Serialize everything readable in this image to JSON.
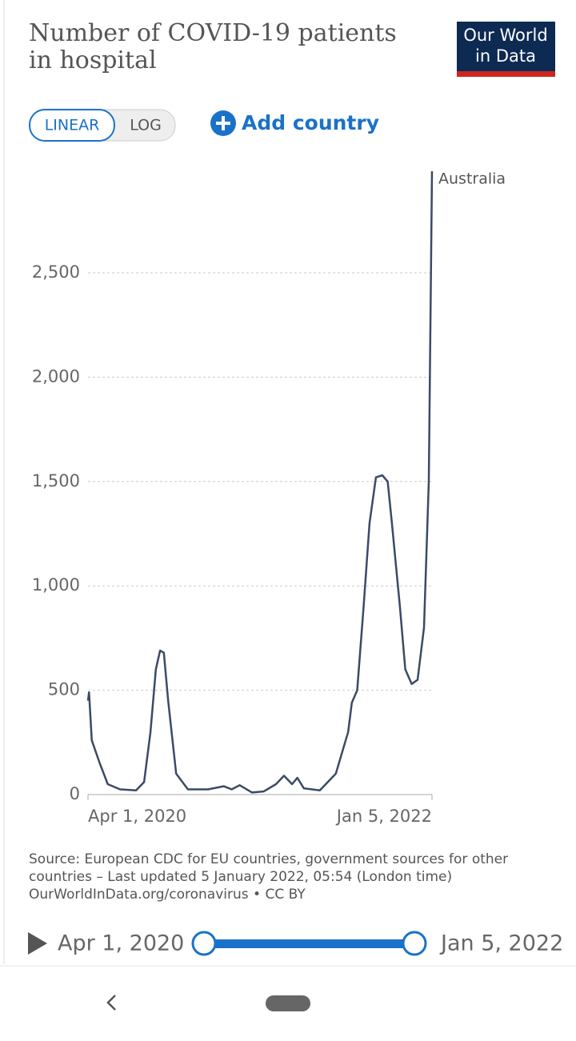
{
  "chart_data": {
    "type": "line",
    "title": [
      "Number of COVID-19 patients",
      "in hospital"
    ],
    "logo": [
      "Our World",
      "in Data"
    ],
    "buttons": [
      "LINEAR",
      "LOG"
    ],
    "add_country": "Add country",
    "x": [
      "2020-04-01",
      "2020-04-03",
      "2020-04-08",
      "2020-04-23",
      "2020-05-08",
      "2020-05-31",
      "2020-06-30",
      "2020-07-15",
      "2020-07-27",
      "2020-08-06",
      "2020-08-14",
      "2020-08-21",
      "2020-08-29",
      "2020-09-13",
      "2020-10-05",
      "2020-11-12",
      "2020-12-11",
      "2020-12-26",
      "2021-01-10",
      "2021-02-02",
      "2021-02-24",
      "2021-03-19",
      "2021-04-03",
      "2021-04-18",
      "2021-04-28",
      "2021-05-10",
      "2021-06-09",
      "2021-07-09",
      "2021-08-01",
      "2021-08-08",
      "2021-08-18",
      "2021-08-30",
      "2021-09-10",
      "2021-09-22",
      "2021-10-04",
      "2021-10-14",
      "2021-10-22",
      "2021-11-06",
      "2021-11-16",
      "2021-11-28",
      "2021-12-09",
      "2021-12-21",
      "2021-12-30",
      "2022-01-05"
    ],
    "series": [
      {
        "name": "Australia",
        "color": "#3b4a66",
        "values": [
          450,
          490,
          260,
          150,
          50,
          25,
          20,
          60,
          300,
          600,
          690,
          680,
          450,
          100,
          25,
          25,
          40,
          25,
          45,
          10,
          15,
          50,
          90,
          50,
          80,
          30,
          20,
          100,
          300,
          440,
          500,
          900,
          1300,
          1520,
          1530,
          1500,
          1300,
          900,
          600,
          530,
          550,
          800,
          1500,
          2987
        ]
      }
    ],
    "xlim": [
      "2020-04-01",
      "2022-01-05"
    ],
    "xticks": [
      {
        "value": "2020-04-01",
        "label": "Apr 1, 2020"
      },
      {
        "value": "2022-01-05",
        "label": "Jan 5, 2022"
      }
    ],
    "ylim": [
      0,
      2987
    ],
    "yticks": [
      0,
      500,
      {
        "value": 1000,
        "label": "1,000"
      },
      {
        "value": 1500,
        "label": "1,500"
      },
      {
        "value": 2000,
        "label": "2,000"
      },
      {
        "value": 2500,
        "label": "2,500"
      }
    ],
    "grid": true,
    "source": [
      "Source: European CDC for EU countries, government sources for other",
      "countries – Last updated 5 January 2022, 05:54 (London time)",
      "OurWorldInData.org/coronavirus • CC BY"
    ],
    "timeline": {
      "start": "Apr 1, 2020",
      "end": "Jan 5, 2022"
    }
  }
}
